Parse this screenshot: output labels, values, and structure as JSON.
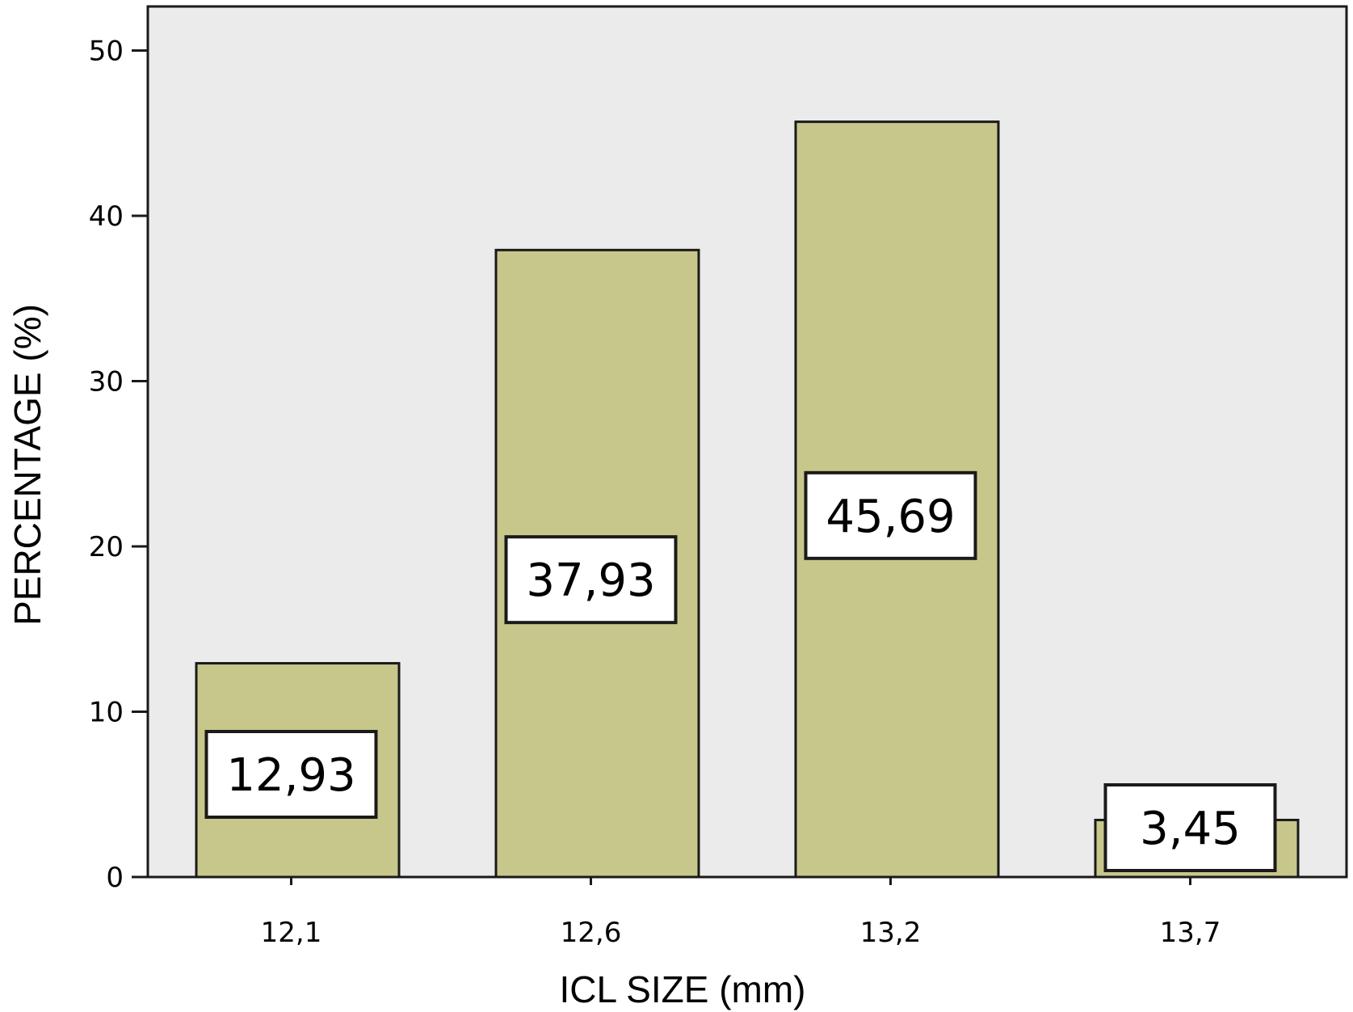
{
  "colors": {
    "plot_background": "#ebebeb",
    "bar_fill": "#c8c78b",
    "bar_stroke": "#1a1a1a",
    "label_box_fill": "#ffffff"
  },
  "chart_data": {
    "type": "bar",
    "xlabel": "ICL SIZE (mm)",
    "ylabel": "PERCENTAGE (%)",
    "categories": [
      "12,1",
      "12,6",
      "13,2",
      "13,7"
    ],
    "values": [
      12.93,
      37.93,
      45.69,
      3.45
    ],
    "data_labels": [
      "12,93",
      "37,93",
      "45,69",
      "3,45"
    ],
    "ylim": [
      0,
      52
    ],
    "y_ticks": [
      0,
      10,
      20,
      30,
      40,
      50
    ],
    "y_tick_labels": [
      "0",
      "10",
      "20",
      "30",
      "40",
      "50"
    ],
    "grid": false,
    "legend": "none"
  }
}
